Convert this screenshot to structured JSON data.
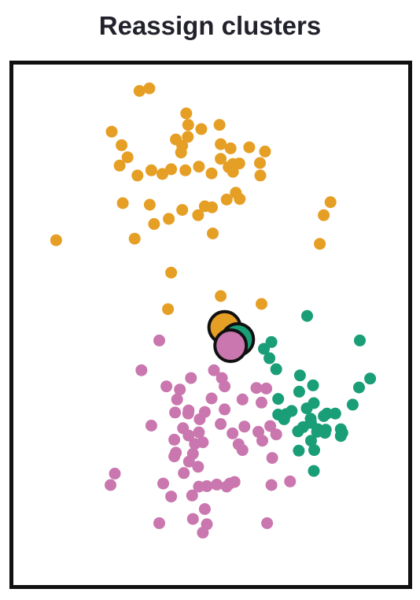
{
  "title": "Reassign clusters",
  "chart_data": {
    "type": "scatter",
    "title": "Reassign clusters",
    "xlabel": "",
    "ylabel": "",
    "xlim": [
      0,
      100
    ],
    "ylim": [
      0,
      100
    ],
    "grid": false,
    "legend": "none",
    "series": [
      {
        "color": "#E69F25",
        "points": [
          [
            32.0,
            94.8
          ],
          [
            34.5,
            95.3
          ],
          [
            43.8,
            90.5
          ],
          [
            52.2,
            88.3
          ],
          [
            44.3,
            88.3
          ],
          [
            47.6,
            87.5
          ],
          [
            25.0,
            87.0
          ],
          [
            41.2,
            85.5
          ],
          [
            44.2,
            86.0
          ],
          [
            52.5,
            84.6
          ],
          [
            55.0,
            83.8
          ],
          [
            59.7,
            84.0
          ],
          [
            27.5,
            84.4
          ],
          [
            42.5,
            83.0
          ],
          [
            42.8,
            84.3
          ],
          [
            63.7,
            83.2
          ],
          [
            29.0,
            82.1
          ],
          [
            52.5,
            81.8
          ],
          [
            62.4,
            81.0
          ],
          [
            55.6,
            80.8
          ],
          [
            47.0,
            80.3
          ],
          [
            54.5,
            80.2
          ],
          [
            57.2,
            80.9
          ],
          [
            43.6,
            79.6
          ],
          [
            27.0,
            80.5
          ],
          [
            40.0,
            79.8
          ],
          [
            37.8,
            78.9
          ],
          [
            31.5,
            78.6
          ],
          [
            35.0,
            79.6
          ],
          [
            50.2,
            79.0
          ],
          [
            55.6,
            79.3
          ],
          [
            62.5,
            78.6
          ],
          [
            56.3,
            75.3
          ],
          [
            54.0,
            74.0
          ],
          [
            57.3,
            74.1
          ],
          [
            27.8,
            73.3
          ],
          [
            34.6,
            73.0
          ],
          [
            42.8,
            72.0
          ],
          [
            48.5,
            72.7
          ],
          [
            50.3,
            72.5
          ],
          [
            80.2,
            73.5
          ],
          [
            78.5,
            71.0
          ],
          [
            39.4,
            70.3
          ],
          [
            46.8,
            71.0
          ],
          [
            35.7,
            69.3
          ],
          [
            30.8,
            66.5
          ],
          [
            50.5,
            67.5
          ],
          [
            11.0,
            66.2
          ],
          [
            77.5,
            65.5
          ],
          [
            40.0,
            60.0
          ],
          [
            39.2,
            53.0
          ],
          [
            62.8,
            54.0
          ],
          [
            52.5,
            55.5
          ]
        ]
      },
      {
        "color": "#C977AE",
        "points": [
          [
            37.0,
            47.0
          ],
          [
            32.5,
            41.3
          ],
          [
            50.8,
            41.3
          ],
          [
            45.0,
            39.8
          ],
          [
            52.8,
            39.8
          ],
          [
            53.5,
            38.2
          ],
          [
            38.8,
            38.2
          ],
          [
            42.2,
            37.6
          ],
          [
            61.5,
            37.9
          ],
          [
            64.0,
            37.8
          ],
          [
            41.5,
            35.7
          ],
          [
            58.0,
            35.7
          ],
          [
            62.8,
            35.1
          ],
          [
            50.2,
            35.9
          ],
          [
            53.5,
            33.8
          ],
          [
            48.5,
            33.3
          ],
          [
            44.4,
            33.6
          ],
          [
            44.3,
            33.0
          ],
          [
            41.0,
            33.2
          ],
          [
            47.2,
            31.9
          ],
          [
            52.5,
            31.0
          ],
          [
            35.0,
            30.7
          ],
          [
            58.5,
            30.5
          ],
          [
            43.0,
            30.2
          ],
          [
            65.0,
            30.6
          ],
          [
            47.0,
            29.4
          ],
          [
            44.4,
            28.8
          ],
          [
            62.0,
            29.5
          ],
          [
            66.5,
            29.0
          ],
          [
            63.0,
            27.8
          ],
          [
            40.8,
            28.0
          ],
          [
            55.5,
            29.2
          ],
          [
            46.0,
            27.2
          ],
          [
            57.0,
            27.1
          ],
          [
            48.0,
            27.5
          ],
          [
            41.2,
            25.5
          ],
          [
            40.8,
            24.8
          ],
          [
            45.5,
            25.3
          ],
          [
            58.0,
            26.0
          ],
          [
            44.5,
            23.8
          ],
          [
            46.8,
            22.8
          ],
          [
            25.8,
            21.5
          ],
          [
            65.5,
            24.5
          ],
          [
            43.2,
            21.6
          ],
          [
            38.0,
            19.6
          ],
          [
            56.0,
            19.9
          ],
          [
            70.0,
            20.0
          ],
          [
            24.7,
            19.3
          ],
          [
            49.0,
            19.1
          ],
          [
            51.5,
            19.4
          ],
          [
            54.0,
            19.0
          ],
          [
            47.0,
            19.0
          ],
          [
            54.8,
            19.6
          ],
          [
            65.3,
            19.3
          ],
          [
            45.3,
            17.3
          ],
          [
            40.0,
            17.1
          ],
          [
            48.5,
            14.7
          ],
          [
            45.5,
            12.8
          ],
          [
            49.0,
            11.8
          ],
          [
            37.0,
            12.0
          ],
          [
            64.2,
            12.0
          ],
          [
            48.0,
            10.2
          ]
        ]
      },
      {
        "color": "#199E77",
        "points": [
          [
            74.3,
            51.7
          ],
          [
            87.6,
            47.0
          ],
          [
            65.3,
            46.7
          ],
          [
            63.4,
            45.4
          ],
          [
            64.8,
            43.6
          ],
          [
            66.5,
            41.5
          ],
          [
            72.5,
            40.3
          ],
          [
            90.2,
            39.7
          ],
          [
            75.8,
            38.4
          ],
          [
            87.4,
            38.0
          ],
          [
            72.3,
            37.2
          ],
          [
            67.0,
            35.8
          ],
          [
            76.0,
            35.0
          ],
          [
            85.8,
            34.7
          ],
          [
            74.2,
            34.0
          ],
          [
            70.4,
            33.5
          ],
          [
            69.0,
            32.9
          ],
          [
            67.0,
            32.8
          ],
          [
            79.3,
            33.0
          ],
          [
            81.4,
            33.0
          ],
          [
            78.5,
            32.5
          ],
          [
            75.2,
            32.0
          ],
          [
            68.5,
            31.9
          ],
          [
            75.3,
            31.2
          ],
          [
            73.3,
            30.4
          ],
          [
            77.0,
            30.0
          ],
          [
            79.0,
            29.9
          ],
          [
            82.8,
            30.0
          ],
          [
            76.8,
            29.5
          ],
          [
            78.8,
            29.3
          ],
          [
            83.2,
            29.3
          ],
          [
            72.0,
            29.6
          ],
          [
            82.8,
            28.7
          ],
          [
            75.3,
            27.8
          ],
          [
            76.1,
            26.0
          ],
          [
            72.2,
            25.9
          ],
          [
            76.0,
            22.0
          ]
        ]
      }
    ],
    "centroids": [
      {
        "color": "#E69F25",
        "point": [
          53.5,
          49.5
        ]
      },
      {
        "color": "#199E77",
        "point": [
          56.8,
          47.2
        ]
      },
      {
        "color": "#C977AE",
        "point": [
          55.0,
          46.0
        ]
      }
    ]
  }
}
